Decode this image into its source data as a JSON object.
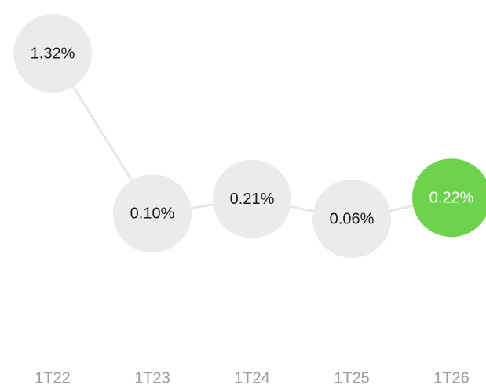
{
  "chart_data": {
    "type": "line",
    "categories": [
      "1T22",
      "1T23",
      "1T24",
      "1T25",
      "1T26"
    ],
    "values": [
      1.32,
      0.1,
      0.21,
      0.06,
      0.22
    ],
    "value_labels": [
      "1.32%",
      "0.10%",
      "0.21%",
      "0.06%",
      "0.22%"
    ],
    "line_color": "#e6e6e6",
    "colors": [
      "#ebebeb",
      "#ebebeb",
      "#ebebeb",
      "#ebebeb",
      "#6dd34d"
    ],
    "label_colors": [
      "#1a1a1a",
      "#1a1a1a",
      "#1a1a1a",
      "#1a1a1a",
      "#ffffff"
    ]
  }
}
